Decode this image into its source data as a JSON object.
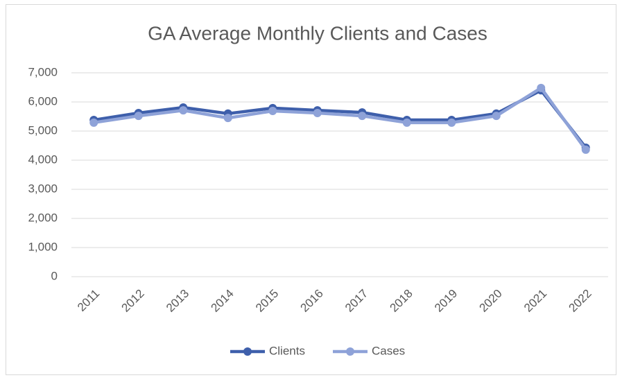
{
  "chart_data": {
    "type": "line",
    "title": "GA Average Monthly Clients and Cases",
    "categories": [
      "2011",
      "2012",
      "2013",
      "2014",
      "2015",
      "2016",
      "2017",
      "2018",
      "2019",
      "2020",
      "2021",
      "2022"
    ],
    "series": [
      {
        "name": "Clients",
        "color": "#3e5fab",
        "values": [
          5380,
          5620,
          5810,
          5600,
          5790,
          5710,
          5640,
          5380,
          5380,
          5600,
          6400,
          4430
        ]
      },
      {
        "name": "Cases",
        "color": "#8ea2d8",
        "values": [
          5290,
          5520,
          5710,
          5450,
          5690,
          5620,
          5520,
          5290,
          5290,
          5520,
          6480,
          4360
        ]
      }
    ],
    "ylim": [
      0,
      7000
    ],
    "yticks": [
      0,
      {
        "value": 1000,
        "label": "1,000"
      },
      {
        "value": 2000,
        "label": "2,000"
      },
      {
        "value": 3000,
        "label": "3,000"
      },
      {
        "value": 4000,
        "label": "4,000"
      },
      {
        "value": 5000,
        "label": "5,000"
      },
      {
        "value": 6000,
        "label": "6,000"
      },
      {
        "value": 7000,
        "label": "7,000"
      }
    ],
    "grid": true,
    "legend": "bottom"
  }
}
